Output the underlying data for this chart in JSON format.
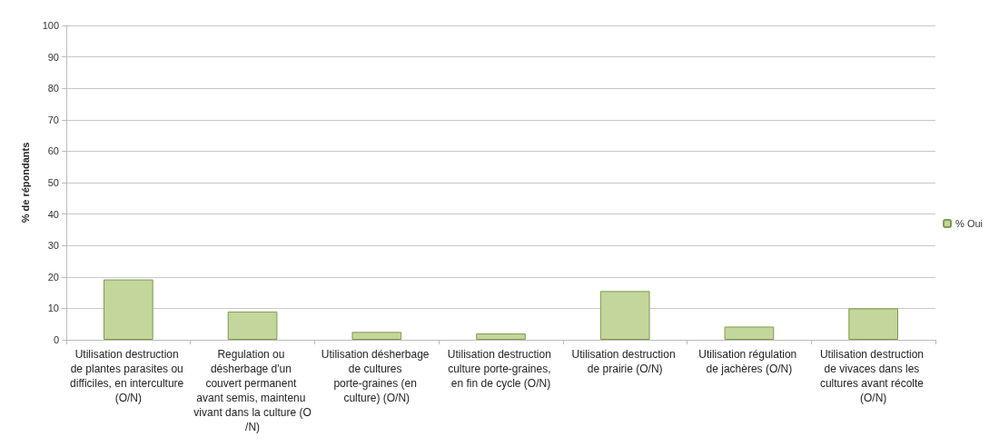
{
  "chart_data": {
    "type": "bar",
    "ylabel": "% de répondants",
    "categories": [
      "Utilisation destruction de plantes parasites ou difficiles, en interculture (O/N)",
      "Regulation ou désherbage d'un couvert permanent avant semis, maintenu vivant dans la culture (O/N)",
      "Utilisation désherbage de cultures porte-graines (en culture) (O/N)",
      "Utilisation destruction culture porte-graines, en fin de cycle (O/N)",
      "Utilisation destruction de prairie (O/N)",
      "Utilisation régulation de jachères (O/N)",
      "Utilisation destruction de vivaces dans les cultures avant récolte (O/N)"
    ],
    "series": [
      {
        "name": "% Oui",
        "color": "#c3d69b",
        "values": [
          19.2,
          9,
          2.5,
          2,
          15.5,
          4.2,
          10
        ]
      }
    ],
    "ylim": [
      0,
      100
    ],
    "yticks": [
      0,
      10,
      20,
      30,
      40,
      50,
      60,
      70,
      80,
      90,
      100
    ],
    "grid": "y",
    "legend": "right"
  }
}
